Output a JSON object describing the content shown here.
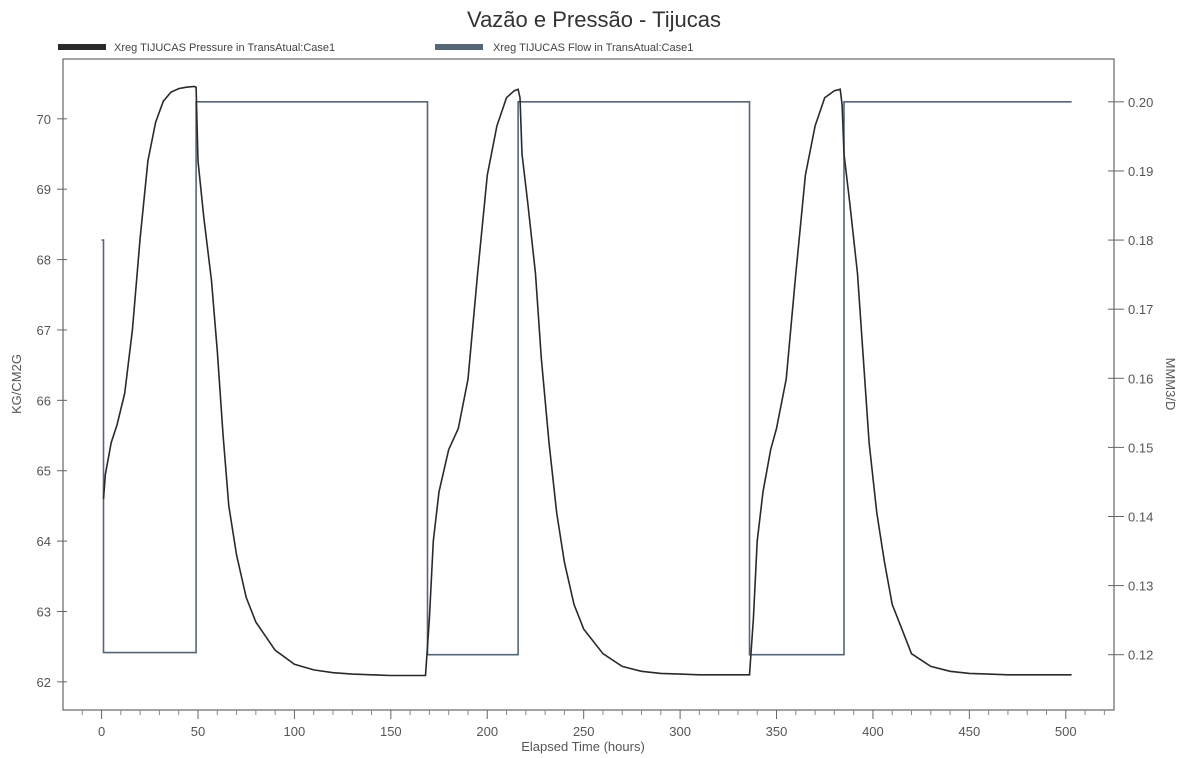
{
  "chart_data": {
    "type": "line",
    "title": "Vazão e Pressão - Tijucas",
    "xlabel": "Elapsed Time (hours)",
    "ylabel_left": "KG/CM2G",
    "ylabel_right": "MMM3/D",
    "xlim": [
      -20,
      525
    ],
    "ylim_left": [
      61.6,
      70.85
    ],
    "ylim_right": [
      0.112,
      0.2062
    ],
    "x_ticks": [
      0,
      50,
      100,
      150,
      200,
      250,
      300,
      350,
      400,
      450,
      500
    ],
    "y_ticks_left": [
      62,
      63,
      64,
      65,
      66,
      67,
      68,
      69,
      70
    ],
    "y_ticks_right": [
      0.12,
      0.13,
      0.14,
      0.15,
      0.16,
      0.17,
      0.18,
      0.19,
      0.2
    ],
    "grid": false,
    "legend_position": "top",
    "colors": {
      "pressure": "#2a2a2a",
      "flow": "#556677",
      "axis": "#555555"
    },
    "series": [
      {
        "name": "Xreg TIJUCAS Pressure in TransAtual:Case1",
        "axis": "left",
        "x": [
          1,
          2,
          5,
          8,
          12,
          16,
          20,
          24,
          28,
          32,
          36,
          40,
          44,
          48,
          49,
          50,
          53,
          57,
          60,
          63,
          66,
          70,
          75,
          80,
          90,
          100,
          110,
          120,
          130,
          140,
          150,
          160,
          168,
          170,
          172,
          175,
          180,
          185,
          190,
          195,
          200,
          205,
          210,
          214,
          216,
          217,
          218,
          221,
          225,
          228,
          232,
          236,
          240,
          245,
          250,
          260,
          270,
          280,
          290,
          300,
          310,
          320,
          330,
          336,
          338,
          340,
          343,
          347,
          350,
          355,
          360,
          365,
          370,
          375,
          380,
          383,
          384,
          385,
          388,
          392,
          395,
          398,
          402,
          406,
          410,
          415,
          420,
          430,
          440,
          450,
          460,
          470,
          480,
          490,
          503
        ],
        "y": [
          64.6,
          64.95,
          65.4,
          65.65,
          66.1,
          67.0,
          68.3,
          69.4,
          69.95,
          70.25,
          70.38,
          70.43,
          70.45,
          70.46,
          70.45,
          69.4,
          68.6,
          67.7,
          66.7,
          65.5,
          64.5,
          63.8,
          63.2,
          62.85,
          62.45,
          62.25,
          62.17,
          62.13,
          62.11,
          62.1,
          62.09,
          62.09,
          62.09,
          62.9,
          64.0,
          64.7,
          65.3,
          65.6,
          66.3,
          67.8,
          69.2,
          69.9,
          70.3,
          70.4,
          70.42,
          70.3,
          69.5,
          68.8,
          67.8,
          66.6,
          65.4,
          64.4,
          63.7,
          63.1,
          62.75,
          62.4,
          62.22,
          62.15,
          62.12,
          62.11,
          62.1,
          62.1,
          62.1,
          62.1,
          62.9,
          64.0,
          64.7,
          65.3,
          65.6,
          66.3,
          67.8,
          69.2,
          69.9,
          70.3,
          70.4,
          70.42,
          70.2,
          69.5,
          68.8,
          67.8,
          66.6,
          65.4,
          64.4,
          63.7,
          63.1,
          62.75,
          62.4,
          62.22,
          62.15,
          62.12,
          62.11,
          62.1,
          62.1,
          62.1,
          62.1
        ]
      },
      {
        "name": "Xreg TIJUCAS Flow in TransAtual:Case1",
        "axis": "right",
        "x": [
          0,
          1,
          1,
          5,
          49,
          49,
          169,
          169,
          216,
          216,
          336,
          336,
          385,
          385,
          503
        ],
        "y": [
          0.18,
          0.18,
          0.1203,
          0.1203,
          0.1203,
          0.2,
          0.2,
          0.12,
          0.12,
          0.2,
          0.2,
          0.12,
          0.12,
          0.2,
          0.2
        ]
      }
    ]
  }
}
